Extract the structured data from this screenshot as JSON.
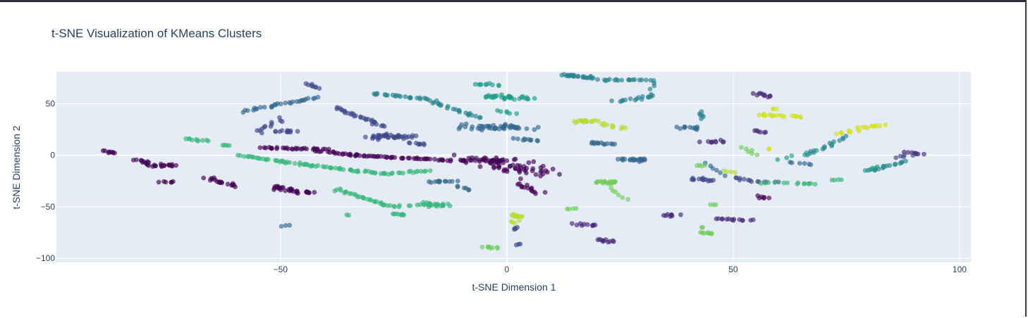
{
  "chart_data": {
    "type": "scatter",
    "title": "t-SNE Visualization of KMeans Clusters",
    "xlabel": "t-SNE Dimension 1",
    "ylabel": "t-SNE Dimension 2",
    "xlim": [
      -99.5,
      102.5
    ],
    "ylim": [
      -104,
      81
    ],
    "xticks": [
      -50,
      0,
      50,
      100
    ],
    "yticks": [
      -100,
      -50,
      0,
      50
    ],
    "xtick_labels": [
      "−50",
      "0",
      "50",
      "100"
    ],
    "ytick_labels": [
      "−100",
      "−50",
      "0",
      "50"
    ],
    "grid": true,
    "plot_background": "#e5ecf6",
    "colorscale": "viridis",
    "point_opacity": 0.65,
    "clusters": [
      {
        "cluster": 0,
        "color": "#440154",
        "groups": [
          {
            "x1": -89,
            "y1": 4,
            "x2": -86,
            "y2": 2,
            "n": 8,
            "spread": 1.2
          },
          {
            "x1": -82,
            "y1": -4,
            "x2": -78,
            "y2": -10,
            "n": 14,
            "spread": 1.4
          },
          {
            "x1": -77,
            "y1": -10,
            "x2": -73,
            "y2": -10,
            "n": 14,
            "spread": 2.0
          },
          {
            "x1": -76,
            "y1": -26,
            "x2": -74,
            "y2": -26,
            "n": 6,
            "spread": 1.0
          },
          {
            "x1": -66,
            "y1": -22,
            "x2": -60,
            "y2": -30,
            "n": 18,
            "spread": 1.3
          },
          {
            "x1": -52,
            "y1": -31,
            "x2": -44,
            "y2": -37,
            "n": 30,
            "spread": 2.6
          },
          {
            "x1": -54,
            "y1": 7,
            "x2": -40,
            "y2": 6,
            "n": 30,
            "spread": 1.2
          },
          {
            "x1": -42,
            "y1": 4,
            "x2": -33,
            "y2": 0,
            "n": 20,
            "spread": 1.2
          },
          {
            "x1": -34,
            "y1": 0,
            "x2": -12,
            "y2": -5,
            "n": 45,
            "spread": 1.0
          },
          {
            "x1": -11,
            "y1": -5,
            "x2": -1,
            "y2": -5,
            "n": 18,
            "spread": 1.0
          },
          {
            "x1": -7,
            "y1": -2,
            "x2": 8,
            "y2": -18,
            "n": 70,
            "spread": 6.0
          },
          {
            "x1": 3,
            "y1": -28,
            "x2": 7,
            "y2": -36,
            "n": 14,
            "spread": 2.0
          },
          {
            "x1": 55,
            "y1": -40,
            "x2": 58,
            "y2": -42,
            "n": 6,
            "spread": 1.0
          }
        ]
      },
      {
        "cluster": 1,
        "color": "#482878",
        "groups": [
          {
            "x1": 15,
            "y1": -67,
            "x2": 20,
            "y2": -68,
            "n": 10,
            "spread": 1.5
          },
          {
            "x1": 20,
            "y1": -82,
            "x2": 23,
            "y2": -84,
            "n": 10,
            "spread": 1.5
          },
          {
            "x1": 34,
            "y1": -58,
            "x2": 38,
            "y2": -58,
            "n": 8,
            "spread": 1.5
          },
          {
            "x1": 46,
            "y1": -62,
            "x2": 54,
            "y2": -63,
            "n": 14,
            "spread": 1.0
          },
          {
            "x1": 55,
            "y1": 60,
            "x2": 58,
            "y2": 57,
            "n": 10,
            "spread": 1.5
          },
          {
            "x1": 55,
            "y1": 24,
            "x2": 57,
            "y2": 22,
            "n": 6,
            "spread": 1.0
          },
          {
            "x1": 88,
            "y1": 3,
            "x2": 92,
            "y2": 1,
            "n": 8,
            "spread": 1.0
          },
          {
            "x1": 44,
            "y1": 13,
            "x2": 48,
            "y2": 13,
            "n": 10,
            "spread": 1.5
          }
        ]
      },
      {
        "cluster": 2,
        "color": "#3e4989",
        "groups": [
          {
            "x1": -55,
            "y1": 22,
            "x2": -50,
            "y2": 35,
            "n": 12,
            "spread": 2.0
          },
          {
            "x1": -51,
            "y1": 23,
            "x2": -47,
            "y2": 23,
            "n": 12,
            "spread": 2.0
          },
          {
            "x1": -38,
            "y1": 46,
            "x2": -27,
            "y2": 28,
            "n": 30,
            "spread": 1.0
          },
          {
            "x1": -30,
            "y1": 18,
            "x2": -21,
            "y2": 18,
            "n": 40,
            "spread": 3.2
          },
          {
            "x1": -21,
            "y1": 12,
            "x2": -18,
            "y2": 10,
            "n": 8,
            "spread": 1.0
          },
          {
            "x1": -44,
            "y1": 70,
            "x2": -42,
            "y2": 65,
            "n": 8,
            "spread": 1.0
          },
          {
            "x1": 30,
            "y1": -3,
            "x2": 29,
            "y2": -6,
            "n": 6,
            "spread": 1.5
          },
          {
            "x1": 41,
            "y1": -23,
            "x2": 46,
            "y2": -24,
            "n": 14,
            "spread": 1.5
          },
          {
            "x1": 50,
            "y1": -22,
            "x2": 56,
            "y2": -26,
            "n": 10,
            "spread": 1.0
          },
          {
            "x1": 1,
            "y1": -72,
            "x2": 2,
            "y2": -70,
            "n": 4,
            "spread": 1.0
          },
          {
            "x1": 2,
            "y1": -87,
            "x2": 3,
            "y2": -86,
            "n": 3,
            "spread": 0.5
          },
          {
            "x1": 86,
            "y1": -2,
            "x2": 90,
            "y2": 1,
            "n": 6,
            "spread": 1.0
          }
        ]
      },
      {
        "cluster": 3,
        "color": "#31688e",
        "groups": [
          {
            "x1": -58,
            "y1": 43,
            "x2": -42,
            "y2": 56,
            "n": 30,
            "spread": 1.0
          },
          {
            "x1": -9,
            "y1": 28,
            "x2": 4,
            "y2": 26,
            "n": 50,
            "spread": 4.0
          },
          {
            "x1": 2,
            "y1": 16,
            "x2": 7,
            "y2": 14,
            "n": 10,
            "spread": 1.5
          },
          {
            "x1": -17,
            "y1": -26,
            "x2": -12,
            "y2": -25,
            "n": 12,
            "spread": 1.5
          },
          {
            "x1": -11,
            "y1": -30,
            "x2": -8,
            "y2": -34,
            "n": 6,
            "spread": 1.0
          },
          {
            "x1": 19,
            "y1": 12,
            "x2": 23,
            "y2": 11,
            "n": 14,
            "spread": 1.5
          },
          {
            "x1": 25,
            "y1": -4,
            "x2": 30,
            "y2": -4,
            "n": 14,
            "spread": 1.5
          },
          {
            "x1": 38,
            "y1": 28,
            "x2": 43,
            "y2": 26,
            "n": 12,
            "spread": 2.0
          },
          {
            "x1": 44,
            "y1": -8,
            "x2": 48,
            "y2": -20,
            "n": 6,
            "spread": 1.0
          },
          {
            "x1": 63,
            "y1": -7,
            "x2": 67,
            "y2": -9,
            "n": 6,
            "spread": 1.0
          },
          {
            "x1": 57,
            "y1": -26,
            "x2": 60,
            "y2": -26,
            "n": 4,
            "spread": 0.5
          },
          {
            "x1": -50,
            "y1": -69,
            "x2": -48,
            "y2": -68,
            "n": 3,
            "spread": 0.5
          }
        ]
      },
      {
        "cluster": 4,
        "color": "#26828e",
        "groups": [
          {
            "x1": -30,
            "y1": 60,
            "x2": -18,
            "y2": 55,
            "n": 20,
            "spread": 1.0
          },
          {
            "x1": -18,
            "y1": 55,
            "x2": -6,
            "y2": 36,
            "n": 25,
            "spread": 1.0
          },
          {
            "x1": 12,
            "y1": 78,
            "x2": 19,
            "y2": 75,
            "n": 24,
            "spread": 1.5
          },
          {
            "x1": 20,
            "y1": 73,
            "x2": 31,
            "y2": 73,
            "n": 18,
            "spread": 1.0
          },
          {
            "x1": 24,
            "y1": 52,
            "x2": 33,
            "y2": 58,
            "n": 16,
            "spread": 1.5
          },
          {
            "x1": 32,
            "y1": 64,
            "x2": 33,
            "y2": 73,
            "n": 4,
            "spread": 1.0
          },
          {
            "x1": 42,
            "y1": 42,
            "x2": 43,
            "y2": 36,
            "n": 6,
            "spread": 1.0
          },
          {
            "x1": 75,
            "y1": 18,
            "x2": 70,
            "y2": 7,
            "n": 10,
            "spread": 1.0
          },
          {
            "x1": 69,
            "y1": 6,
            "x2": 66,
            "y2": 0,
            "n": 6,
            "spread": 1.0
          },
          {
            "x1": 80,
            "y1": -15,
            "x2": 88,
            "y2": -6,
            "n": 16,
            "spread": 0.8
          }
        ]
      },
      {
        "cluster": 5,
        "color": "#1f9e89",
        "groups": [
          {
            "x1": -7,
            "y1": 69,
            "x2": -2,
            "y2": 68,
            "n": 10,
            "spread": 1.5
          },
          {
            "x1": -5,
            "y1": 57,
            "x2": 5,
            "y2": 55,
            "n": 34,
            "spread": 3.0
          },
          {
            "x1": -2,
            "y1": 43,
            "x2": 2,
            "y2": 40,
            "n": 6,
            "spread": 1.0
          },
          {
            "x1": 60,
            "y1": -4,
            "x2": 68,
            "y2": 4,
            "n": 6,
            "spread": 1.0
          },
          {
            "x1": 79,
            "y1": -15,
            "x2": 83,
            "y2": -11,
            "n": 6,
            "spread": 1.0
          }
        ]
      },
      {
        "cluster": 6,
        "color": "#35b779",
        "groups": [
          {
            "x1": -59,
            "y1": 0,
            "x2": -45,
            "y2": -9,
            "n": 30,
            "spread": 1.0
          },
          {
            "x1": -45,
            "y1": -9,
            "x2": -27,
            "y2": -18,
            "n": 36,
            "spread": 1.0
          },
          {
            "x1": -27,
            "y1": -18,
            "x2": -17,
            "y2": -15,
            "n": 16,
            "spread": 1.0
          },
          {
            "x1": -38,
            "y1": -33,
            "x2": -25,
            "y2": -50,
            "n": 30,
            "spread": 1.0
          },
          {
            "x1": -25,
            "y1": -50,
            "x2": -18,
            "y2": -48,
            "n": 8,
            "spread": 1.0
          },
          {
            "x1": -19,
            "y1": -47,
            "x2": -13,
            "y2": -49,
            "n": 24,
            "spread": 2.5
          },
          {
            "x1": -25,
            "y1": -57,
            "x2": -22,
            "y2": -58,
            "n": 8,
            "spread": 1.0
          },
          {
            "x1": -71,
            "y1": 16,
            "x2": -66,
            "y2": 14,
            "n": 10,
            "spread": 1.0
          },
          {
            "x1": -63,
            "y1": 10,
            "x2": -61,
            "y2": 9,
            "n": 4,
            "spread": 0.5
          },
          {
            "x1": 56,
            "y1": -27,
            "x2": 62,
            "y2": -27,
            "n": 6,
            "spread": 1.0
          },
          {
            "x1": 65,
            "y1": -27,
            "x2": 68,
            "y2": -28,
            "n": 8,
            "spread": 1.0
          },
          {
            "x1": 72,
            "y1": -24,
            "x2": 74,
            "y2": -24,
            "n": 4,
            "spread": 0.5
          },
          {
            "x1": -35,
            "y1": -58,
            "x2": -35,
            "y2": -58,
            "n": 2,
            "spread": 0.4
          }
        ]
      },
      {
        "cluster": 7,
        "color": "#6ece58",
        "groups": [
          {
            "x1": 20,
            "y1": -26,
            "x2": 24,
            "y2": -26,
            "n": 20,
            "spread": 1.8
          },
          {
            "x1": 23,
            "y1": -32,
            "x2": 26,
            "y2": -43,
            "n": 6,
            "spread": 1.0
          },
          {
            "x1": 13,
            "y1": -52,
            "x2": 15,
            "y2": -52,
            "n": 4,
            "spread": 0.6
          },
          {
            "x1": -5,
            "y1": -89,
            "x2": -2,
            "y2": -90,
            "n": 8,
            "spread": 1.0
          },
          {
            "x1": 43,
            "y1": -75,
            "x2": 46,
            "y2": -76,
            "n": 8,
            "spread": 1.2
          },
          {
            "x1": 42,
            "y1": -10,
            "x2": 44,
            "y2": -10,
            "n": 4,
            "spread": 0.6
          },
          {
            "x1": 45,
            "y1": -48,
            "x2": 46,
            "y2": -48,
            "n": 3,
            "spread": 0.5
          },
          {
            "x1": 52,
            "y1": 8,
            "x2": 55,
            "y2": 0,
            "n": 6,
            "spread": 1.0
          },
          {
            "x1": 43,
            "y1": -70,
            "x2": 43,
            "y2": -70,
            "n": 2,
            "spread": 0.4
          }
        ]
      },
      {
        "cluster": 8,
        "color": "#b5de2b",
        "groups": [
          {
            "x1": 16,
            "y1": 33,
            "x2": 19,
            "y2": 33,
            "n": 20,
            "spread": 1.8
          },
          {
            "x1": 20,
            "y1": 31,
            "x2": 26,
            "y2": 26,
            "n": 10,
            "spread": 1.2
          },
          {
            "x1": 1,
            "y1": -58,
            "x2": 3,
            "y2": -60,
            "n": 10,
            "spread": 1.2
          },
          {
            "x1": 2,
            "y1": -63,
            "x2": 1,
            "y2": -66,
            "n": 4,
            "spread": 0.8
          },
          {
            "x1": 48,
            "y1": -15,
            "x2": 50,
            "y2": -17,
            "n": 4,
            "spread": 0.6
          }
        ]
      },
      {
        "cluster": 9,
        "color": "#d2e21b",
        "groups": [
          {
            "x1": 56,
            "y1": 39,
            "x2": 61,
            "y2": 38,
            "n": 14,
            "spread": 1.5
          },
          {
            "x1": 59,
            "y1": 45,
            "x2": 59,
            "y2": 45,
            "n": 3,
            "spread": 0.5
          },
          {
            "x1": 63,
            "y1": 38,
            "x2": 65,
            "y2": 37,
            "n": 6,
            "spread": 0.8
          },
          {
            "x1": 73,
            "y1": 21,
            "x2": 77,
            "y2": 24,
            "n": 10,
            "spread": 1.2
          },
          {
            "x1": 78,
            "y1": 27,
            "x2": 83,
            "y2": 29,
            "n": 10,
            "spread": 1.2
          },
          {
            "x1": 58,
            "y1": 6,
            "x2": 58,
            "y2": 6,
            "n": 2,
            "spread": 0.4
          }
        ]
      }
    ]
  }
}
